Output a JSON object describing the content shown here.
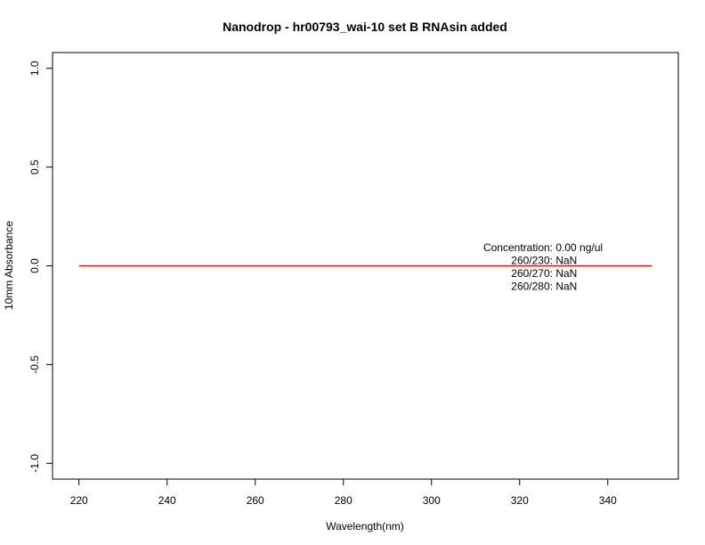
{
  "chart_data": {
    "type": "line",
    "title": "Nanodrop - hr00793_wai-10 set B RNAsin added",
    "xlabel": "Wavelength(nm)",
    "ylabel": "10mm Absorbance",
    "xlim": [
      214,
      356
    ],
    "ylim": [
      -1.08,
      1.08
    ],
    "x_ticks": [
      220,
      240,
      260,
      280,
      300,
      320,
      340
    ],
    "y_ticks": [
      -1.0,
      -0.5,
      0.0,
      0.5,
      1.0
    ],
    "y_tick_labels": [
      "-1.0",
      "-0.5",
      "0.0",
      "0.5",
      "1.0"
    ],
    "grid": false,
    "series": [
      {
        "color": "#ff0000",
        "x": [
          220,
          350
        ],
        "y": [
          0,
          0
        ]
      }
    ],
    "annotations": [
      "Concentration: 0.00 ng/ul",
      "260/230: NaN",
      "260/270: NaN",
      "260/280: NaN"
    ]
  }
}
